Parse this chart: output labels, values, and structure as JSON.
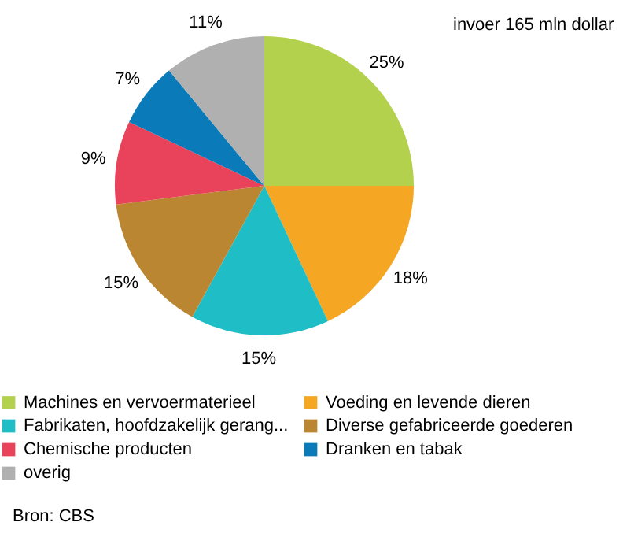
{
  "chart_data": {
    "type": "pie",
    "categories": [
      "Machines en vervoermaterieel",
      "Voeding en levende dieren",
      "Fabrikaten, hoofdzakelijk gerang...",
      "Diverse gefabriceerde goederen",
      "Chemische producten",
      "Dranken en tabak",
      "overig"
    ],
    "values": [
      25,
      18,
      15,
      15,
      9,
      7,
      11
    ],
    "value_labels": [
      "25%",
      "18%",
      "15%",
      "15%",
      "9%",
      "7%",
      "11%"
    ],
    "colors": [
      "#b3d14c",
      "#f5a623",
      "#1fbdc6",
      "#bb8632",
      "#e8435a",
      "#0a7bb8",
      "#b0b0b0"
    ],
    "legend": "bottom",
    "annotations": [
      "invoer 165 mln dollar",
      "Bron: CBS"
    ]
  }
}
